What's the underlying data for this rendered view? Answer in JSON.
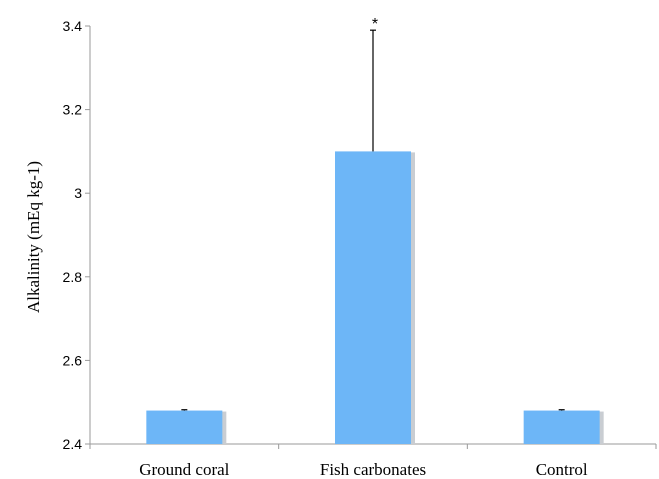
{
  "chart_data": {
    "type": "bar",
    "title": "",
    "xlabel": "",
    "ylabel": "Alkalinity (mEq kg-1)",
    "categories": [
      "Ground coral",
      "Fish carbonates",
      "Control"
    ],
    "values": [
      2.48,
      3.1,
      2.48
    ],
    "error_upper": [
      0.002,
      0.29,
      0.002
    ],
    "annotations": [
      {
        "category": "Fish carbonates",
        "text": "*"
      }
    ],
    "ylim": [
      2.4,
      3.4
    ],
    "yticks": [
      2.4,
      2.6,
      2.8,
      3.0,
      3.2,
      3.4
    ],
    "ytick_labels": [
      "2.4",
      "2.6",
      "2.8",
      "3",
      "3.2",
      "3.4"
    ],
    "grid": false,
    "legend": "none",
    "colors": {
      "bar": "#6DB6F7",
      "bar_shadow": "#C9CDD2",
      "axis": "#9A9A9A",
      "error_bar": "#000000"
    }
  }
}
